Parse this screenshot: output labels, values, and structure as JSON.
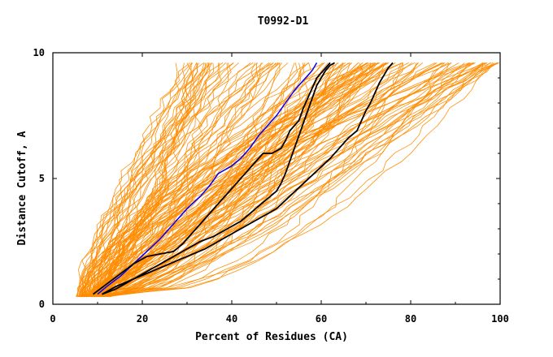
{
  "chart_data": {
    "type": "line",
    "title": "T0992-D1",
    "xlabel": "Percent of Residues (CA)",
    "ylabel": "Distance Cutoff, A",
    "xlim": [
      0,
      100
    ],
    "ylim": [
      0,
      10
    ],
    "x_ticks": [
      0,
      20,
      40,
      60,
      80,
      100
    ],
    "y_ticks": [
      0,
      5,
      10
    ],
    "x_tick_labels": [
      "0",
      "20",
      "40",
      "60",
      "80",
      "100"
    ],
    "y_tick_labels": [
      "0",
      "5",
      "10"
    ],
    "grid": false,
    "legend": "none",
    "colors": {
      "background_traces": "#ff8c00",
      "highlight_black": "#000000",
      "highlight_blue": "#0000ff",
      "axes": "#000000"
    },
    "background_trace_count": 150,
    "background_trace_range": {
      "x_start": [
        5,
        12
      ],
      "x_end": [
        28,
        100
      ],
      "y_start": 0.3,
      "y_end": 9.6
    },
    "series": [
      {
        "color": "blue",
        "x": [
          10,
          12,
          15,
          18,
          21,
          24,
          27,
          30,
          33,
          35,
          37,
          40,
          42,
          44,
          46,
          48,
          50,
          52,
          54,
          56,
          58,
          59
        ],
        "y": [
          0.4,
          0.7,
          1.1,
          1.6,
          2.1,
          2.6,
          3.2,
          3.8,
          4.3,
          4.7,
          5.2,
          5.5,
          5.8,
          6.2,
          6.7,
          7.1,
          7.5,
          8.0,
          8.5,
          8.9,
          9.3,
          9.6
        ]
      },
      {
        "color": "black",
        "x": [
          11,
          14,
          17,
          20,
          23,
          25,
          27,
          29,
          31,
          33,
          36,
          39,
          42,
          44,
          46,
          48,
          50,
          51,
          52,
          53,
          54,
          55,
          56,
          57,
          58,
          59,
          60,
          61,
          62,
          63
        ],
        "y": [
          0.4,
          0.6,
          0.9,
          1.2,
          1.5,
          1.7,
          1.9,
          2.1,
          2.3,
          2.5,
          2.7,
          3.0,
          3.3,
          3.6,
          3.9,
          4.2,
          4.5,
          4.8,
          5.2,
          5.7,
          6.2,
          6.7,
          7.2,
          7.7,
          8.2,
          8.7,
          9.0,
          9.3,
          9.5,
          9.6
        ]
      },
      {
        "color": "black",
        "x": [
          9,
          12,
          15,
          18,
          21,
          24,
          27,
          29,
          31,
          33,
          35,
          37,
          39,
          41,
          43,
          45,
          47,
          49,
          51,
          52,
          53,
          55,
          56,
          57,
          58,
          59,
          60,
          61,
          62
        ],
        "y": [
          0.4,
          0.8,
          1.2,
          1.6,
          1.9,
          2.0,
          2.1,
          2.4,
          2.8,
          3.2,
          3.6,
          4.0,
          4.4,
          4.8,
          5.2,
          5.6,
          6.0,
          6.0,
          6.2,
          6.5,
          6.9,
          7.3,
          7.8,
          8.2,
          8.6,
          9.0,
          9.2,
          9.4,
          9.6
        ]
      },
      {
        "color": "black",
        "x": [
          11,
          14,
          18,
          22,
          26,
          30,
          34,
          38,
          42,
          46,
          50,
          53,
          56,
          59,
          62,
          64,
          66,
          68,
          69,
          70,
          71,
          72,
          73,
          74,
          75,
          76
        ],
        "y": [
          0.4,
          0.7,
          1.0,
          1.3,
          1.6,
          1.9,
          2.2,
          2.6,
          3.0,
          3.4,
          3.8,
          4.3,
          4.8,
          5.3,
          5.8,
          6.2,
          6.6,
          6.9,
          7.3,
          7.7,
          8.0,
          8.4,
          8.8,
          9.1,
          9.4,
          9.6
        ]
      }
    ]
  }
}
